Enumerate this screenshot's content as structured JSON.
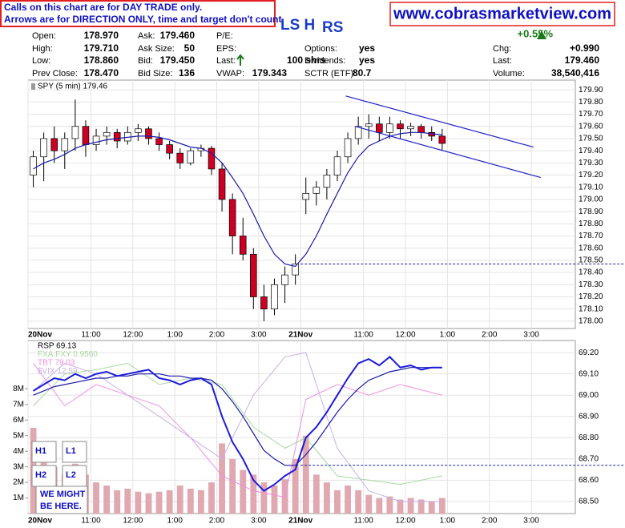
{
  "header": {
    "notice": [
      "Calls on this chart are for DAY TRADE only.",
      "Arrows are for DIRECTION ONLY, time and target don't count."
    ],
    "site": "www.cobrasmarketview.com",
    "title_parts": [
      "LS H",
      "RS"
    ]
  },
  "quote": {
    "cells": [
      {
        "label": "Open:",
        "value": "178.970"
      },
      {
        "label": "Ask:",
        "value": "179.460"
      },
      {
        "label": "P/E:"
      },
      {
        "value": "+0.55%"
      },
      {
        "label": "High:",
        "value": "179.710"
      },
      {
        "label": "Ask Size:",
        "value": "50"
      },
      {
        "label": "EPS:"
      },
      {
        "label": "Options:",
        "value": "yes"
      },
      {
        "label": "Chg:",
        "value": "+0.990"
      },
      {
        "label": "Low:",
        "value": "178.860"
      },
      {
        "label": "Bid:",
        "value": "179.450"
      },
      {
        "label": "Last:",
        "value": "100 shrs"
      },
      {
        "label": "Dividends:",
        "value": "yes"
      },
      {
        "label": "Last:",
        "value": "179.460"
      },
      {
        "label": "Prev Close:",
        "value": "178.470"
      },
      {
        "label": "Bid Size:",
        "value": "136"
      },
      {
        "label": "VWAP:",
        "value": "179.343"
      },
      {
        "label": "SCTR (ETF):",
        "value": "80.7"
      },
      {
        "label": "Volume:",
        "value": "38,540,416"
      }
    ]
  },
  "chart_data": [
    {
      "type": "candlestick",
      "label": "SPY (5 min) 179.46",
      "grid": true,
      "up_color": "#ffffff",
      "down_color": "#cc0022",
      "ma_color": "#1a1aa8",
      "open": [
        179.2,
        179.35,
        179.5,
        179.4,
        179.5,
        179.6,
        179.45,
        179.52,
        179.55,
        179.48,
        179.55,
        179.58,
        179.5,
        179.45,
        179.38,
        179.3,
        179.4,
        179.42,
        179.25,
        179.0,
        178.7,
        178.55,
        178.2,
        178.1,
        178.3,
        178.38,
        179.0,
        179.05,
        179.1,
        179.2,
        179.35,
        179.5,
        179.6,
        179.62,
        179.55,
        179.62,
        179.58,
        179.6,
        179.55,
        179.52
      ],
      "high": [
        179.4,
        179.55,
        179.6,
        179.55,
        179.82,
        179.65,
        179.58,
        179.6,
        179.58,
        179.6,
        179.62,
        179.6,
        179.55,
        179.48,
        179.42,
        179.42,
        179.45,
        179.44,
        179.3,
        179.05,
        178.85,
        178.6,
        178.3,
        178.35,
        178.45,
        178.55,
        179.18,
        179.15,
        179.25,
        179.4,
        179.55,
        179.68,
        179.7,
        179.68,
        179.68,
        179.65,
        179.63,
        179.62,
        179.6,
        179.58
      ],
      "low": [
        179.1,
        179.15,
        179.3,
        179.25,
        179.4,
        179.35,
        179.4,
        179.45,
        179.42,
        179.45,
        179.48,
        179.45,
        179.4,
        179.33,
        179.25,
        179.28,
        179.35,
        179.2,
        178.9,
        178.55,
        178.5,
        178.1,
        178.0,
        178.05,
        178.15,
        178.3,
        178.88,
        178.95,
        179.0,
        179.15,
        179.3,
        179.45,
        179.5,
        179.48,
        179.5,
        179.5,
        179.52,
        179.5,
        179.48,
        179.4
      ],
      "close": [
        179.35,
        179.5,
        179.4,
        179.5,
        179.6,
        179.45,
        179.52,
        179.55,
        179.48,
        179.55,
        179.58,
        179.5,
        179.45,
        179.38,
        179.3,
        179.4,
        179.42,
        179.25,
        179.0,
        178.7,
        178.55,
        178.2,
        178.1,
        178.3,
        178.38,
        178.47,
        179.05,
        179.1,
        179.2,
        179.35,
        179.5,
        179.6,
        179.62,
        179.55,
        179.62,
        179.58,
        179.6,
        179.55,
        179.52,
        179.46
      ],
      "ma": [
        179.25,
        179.3,
        179.33,
        179.37,
        179.42,
        179.45,
        179.47,
        179.49,
        179.5,
        179.51,
        179.52,
        179.52,
        179.51,
        179.49,
        179.46,
        179.43,
        179.42,
        179.38,
        179.3,
        179.18,
        179.05,
        178.88,
        178.7,
        178.55,
        178.47,
        178.45,
        178.55,
        178.7,
        178.88,
        179.05,
        179.22,
        179.35,
        179.44,
        179.48,
        179.52,
        179.54,
        179.55,
        179.55,
        179.54,
        179.53
      ],
      "trendlines": [
        {
          "x": [
            29.8,
            47.7
          ],
          "y": [
            179.85,
            179.43
          ]
        },
        {
          "x": [
            30.7,
            48.4
          ],
          "y": [
            179.6,
            179.18
          ]
        }
      ],
      "hline": 178.47,
      "xlim": [
        -0.5,
        51.7
      ],
      "xticks": [
        {
          "value": -0.5,
          "label": "20Nov"
        },
        {
          "value": 5.5,
          "label": "11:00"
        },
        {
          "value": 9.5,
          "label": "12:00"
        },
        {
          "value": 13.5,
          "label": "1:00"
        },
        {
          "value": 17.5,
          "label": "2:00"
        },
        {
          "value": 21.5,
          "label": "3:00"
        },
        {
          "value": 25.5,
          "label": "21Nov"
        },
        {
          "value": 31.5,
          "label": "11:00"
        },
        {
          "value": 35.5,
          "label": "12:00"
        },
        {
          "value": 39.5,
          "label": "1:00"
        },
        {
          "value": 43.5,
          "label": "2:00"
        },
        {
          "value": 47.5,
          "label": "3:00"
        }
      ],
      "ylim": [
        177.94,
        179.98
      ],
      "yticks": [
        {
          "value": 178.0,
          "label": "178.00"
        },
        {
          "value": 178.1,
          "label": "178.10"
        },
        {
          "value": 178.2,
          "label": "178.20"
        },
        {
          "value": 178.3,
          "label": "178.30"
        },
        {
          "value": 178.4,
          "label": "178.40"
        },
        {
          "value": 178.5,
          "label": "178.50"
        },
        {
          "value": 178.6,
          "label": "178.60"
        },
        {
          "value": 178.7,
          "label": "178.70"
        },
        {
          "value": 178.8,
          "label": "178.80"
        },
        {
          "value": 178.9,
          "label": "178.90"
        },
        {
          "value": 179.0,
          "label": "179.00"
        },
        {
          "value": 179.1,
          "label": "179.10"
        },
        {
          "value": 179.2,
          "label": "179.20"
        },
        {
          "value": 179.3,
          "label": "179.30"
        },
        {
          "value": 179.4,
          "label": "179.40"
        },
        {
          "value": 179.5,
          "label": "179.50"
        },
        {
          "value": 179.6,
          "label": "179.60"
        },
        {
          "value": 179.7,
          "label": "179.70"
        },
        {
          "value": 179.8,
          "label": "179.80"
        },
        {
          "value": 179.9,
          "label": "179.90"
        }
      ]
    },
    {
      "type": "line",
      "grid": true,
      "series": [
        {
          "name": "RSP 69.13",
          "color": "#1a1adc",
          "values": [
            69.02,
            69.05,
            69.08,
            69.07,
            69.1,
            69.08,
            69.1,
            69.11,
            69.09,
            69.1,
            69.11,
            69.12,
            69.08,
            69.07,
            69.05,
            69.07,
            69.08,
            69.05,
            68.9,
            68.78,
            68.7,
            68.6,
            68.55,
            68.58,
            68.62,
            68.65,
            68.8,
            68.85,
            68.92,
            69.0,
            69.08,
            69.15,
            69.17,
            69.14,
            69.18,
            69.13,
            69.14,
            69.12,
            69.13,
            69.13
          ]
        },
        {
          "name": "FXA:FXY 0.9560",
          "color": "#a8d8a0",
          "x": [
            0,
            3,
            6,
            9,
            12,
            15,
            18,
            21,
            24,
            26,
            29,
            32,
            35,
            39
          ],
          "values": [
            68.95,
            69.1,
            69.12,
            69.15,
            69.05,
            69.08,
            69.05,
            68.85,
            68.75,
            68.8,
            68.62,
            68.6,
            68.58,
            68.62
          ]
        },
        {
          "name": "TBT 79.03",
          "color": "#f090e0",
          "x": [
            0,
            3,
            6,
            9,
            12,
            15,
            18,
            21,
            24,
            26,
            29,
            32,
            35,
            39
          ],
          "values": [
            69.15,
            68.95,
            69.05,
            69.0,
            68.95,
            68.8,
            68.62,
            68.55,
            68.52,
            68.98,
            69.05,
            69.0,
            69.05,
            69.0
          ]
        },
        {
          "name": "$VIX 12.59",
          "color": "#c8b0e8",
          "x": [
            0,
            3,
            6,
            9,
            12,
            15,
            18,
            21,
            24,
            26,
            29,
            32,
            35,
            39
          ],
          "values": [
            69.02,
            69.15,
            69.1,
            69.0,
            68.9,
            68.8,
            68.7,
            69.0,
            69.18,
            69.2,
            68.75,
            68.55,
            68.5,
            68.5
          ]
        }
      ],
      "ma": [
        69.0,
        69.02,
        69.04,
        69.05,
        69.06,
        69.07,
        69.08,
        69.08,
        69.09,
        69.09,
        69.1,
        69.1,
        69.1,
        69.09,
        69.09,
        69.08,
        69.08,
        69.07,
        69.03,
        68.97,
        68.9,
        68.82,
        68.74,
        68.7,
        68.67,
        68.67,
        68.72,
        68.78,
        68.85,
        68.92,
        68.98,
        69.03,
        69.07,
        69.09,
        69.11,
        69.12,
        69.13,
        69.13,
        69.13,
        69.13
      ],
      "ma_color": "#1a1aa8",
      "volume": [
        5.5,
        4.0,
        3.0,
        2.5,
        3.2,
        2.5,
        2.0,
        1.8,
        1.5,
        1.6,
        1.4,
        1.3,
        1.4,
        1.5,
        1.8,
        1.6,
        1.5,
        2.0,
        4.5,
        3.5,
        2.8,
        2.5,
        2.0,
        1.8,
        2.2,
        3.5,
        5.0,
        2.5,
        2.0,
        1.5,
        1.8,
        1.5,
        1.2,
        1.0,
        1.1,
        0.9,
        1.0,
        0.9,
        0.8,
        1.0
      ],
      "volume_color": "#e0a8b0",
      "hline": 68.67,
      "annotations": [
        "H1",
        "L1",
        "H2",
        "L2",
        "WE MIGHT",
        "BE HERE."
      ],
      "xlim": [
        -0.5,
        51.7
      ],
      "xticks": [
        {
          "value": -0.5,
          "label": "20Nov"
        },
        {
          "value": 5.5,
          "label": "11:00"
        },
        {
          "value": 9.5,
          "label": "12:00"
        },
        {
          "value": 13.5,
          "label": "1:00"
        },
        {
          "value": 17.5,
          "label": "2:00"
        },
        {
          "value": 21.5,
          "label": "3:00"
        },
        {
          "value": 25.5,
          "label": "21Nov"
        },
        {
          "value": 31.5,
          "label": "11:00"
        },
        {
          "value": 35.5,
          "label": "12:00"
        },
        {
          "value": 39.5,
          "label": "1:00"
        },
        {
          "value": 43.5,
          "label": "2:00"
        },
        {
          "value": 47.5,
          "label": "3:00"
        }
      ],
      "ylim": [
        68.443,
        69.257
      ],
      "yticks": [
        {
          "value": 68.5,
          "label": "68.50"
        },
        {
          "value": 68.6,
          "label": "68.60"
        },
        {
          "value": 68.7,
          "label": "68.70"
        },
        {
          "value": 68.8,
          "label": "68.80"
        },
        {
          "value": 68.9,
          "label": "68.90"
        },
        {
          "value": 69.0,
          "label": "69.00"
        },
        {
          "value": 69.1,
          "label": "69.10"
        },
        {
          "value": 69.2,
          "label": "69.20"
        }
      ],
      "y2lim": [
        0,
        11.1
      ],
      "y2ticks": [
        {
          "value": 1,
          "label": "1M"
        },
        {
          "value": 2,
          "label": "2M"
        },
        {
          "value": 3,
          "label": "3M"
        },
        {
          "value": 4,
          "label": "4M"
        },
        {
          "value": 5,
          "label": "5M"
        },
        {
          "value": 6,
          "label": "6M"
        },
        {
          "value": 7,
          "label": "7M"
        },
        {
          "value": 8,
          "label": "8M"
        }
      ]
    }
  ]
}
